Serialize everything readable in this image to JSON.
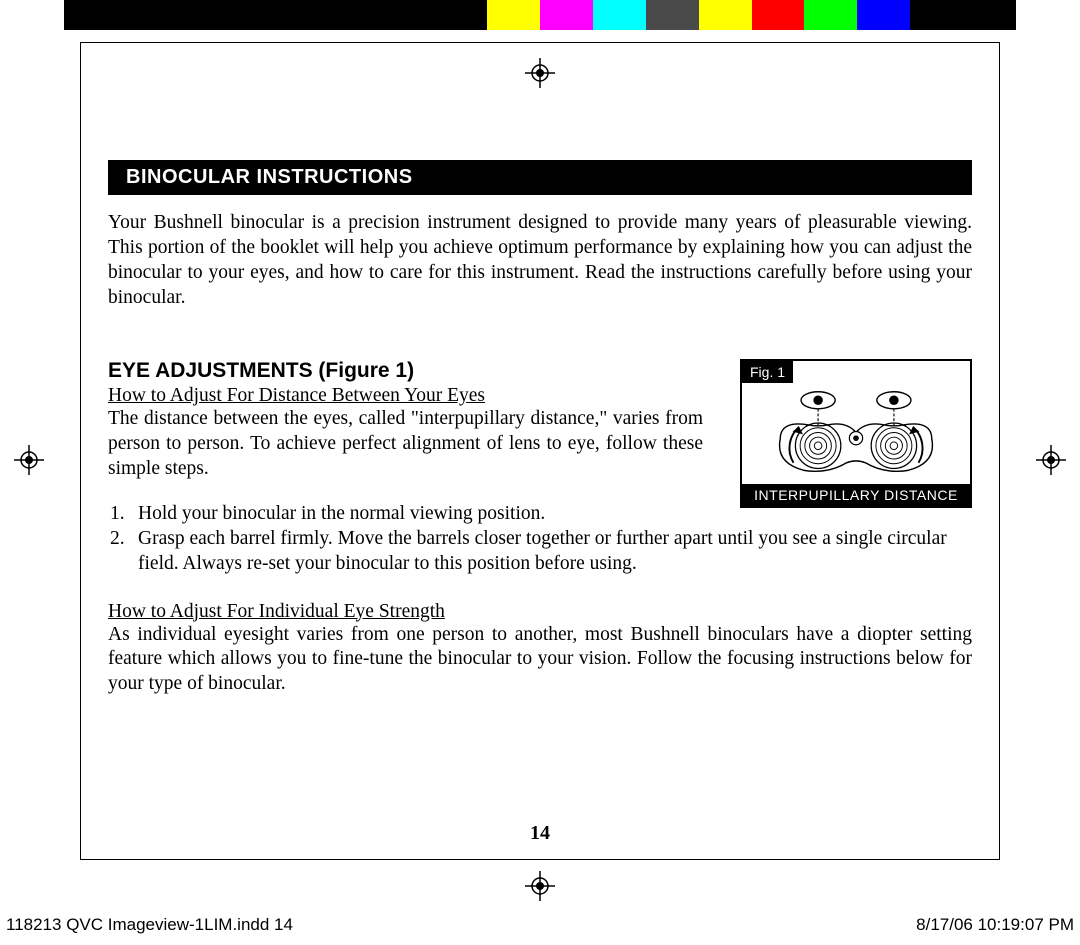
{
  "color_strip": {
    "colors": [
      "#000000",
      "#000000",
      "#000000",
      "#000000",
      "#000000",
      "#000000",
      "#000000",
      "#000000",
      "#ffff00",
      "#ff00ff",
      "#00ffff",
      "#4a4a4a",
      "#ffff00",
      "#ff0000",
      "#00ff00",
      "#0000ff",
      "#000000",
      "#000000"
    ]
  },
  "title_bar": "BINOCULAR INSTRUCTIONS",
  "intro": "Your Bushnell binocular is a precision instrument designed to provide many years of pleasurable viewing. This portion of the booklet will help you achieve optimum performance by explaining how you can adjust the binocular to your eyes, and how to care for this instrument. Read the instructions carefully before using your binocular.",
  "section1": {
    "heading": "EYE ADJUSTMENTS (Figure 1)",
    "sub1": "How to Adjust For Distance Between Your Eyes",
    "body1": "The distance between the eyes, called \"interpupillary distance,\" varies from person to person. To achieve perfect alignment of lens to eye, follow these simple steps."
  },
  "figure": {
    "label": "Fig. 1",
    "caption": "INTERPUPILLARY DISTANCE"
  },
  "steps": [
    {
      "n": "1.",
      "text": "Hold your binocular in the normal viewing position."
    },
    {
      "n": "2.",
      "text": "Grasp each barrel firmly. Move the barrels closer together or further apart until you see a single circular field. Always re-set your binocular to this position before using."
    }
  ],
  "section2": {
    "sub": "How to Adjust For Individual Eye Strength",
    "body": "As individual eyesight varies from one person to another, most Bushnell binoculars have a diopter setting feature which allows you to fine-tune the binocular to your vision. Follow the focusing instructions below for your type of binocular."
  },
  "page_number": "14",
  "footer": {
    "left": "118213 QVC Imageview-1LIM.indd   14",
    "right": "8/17/06   10:19:07 PM"
  }
}
